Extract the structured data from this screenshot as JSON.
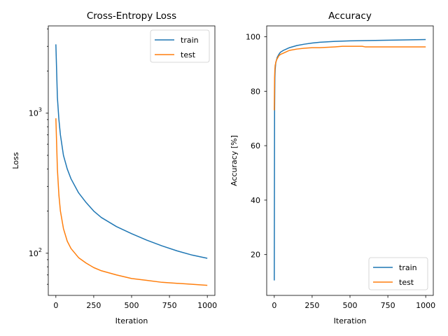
{
  "chart_data": [
    {
      "type": "line",
      "title": "Cross-Entropy Loss",
      "xlabel": "Iteration",
      "ylabel": "Loss",
      "yscale": "log",
      "xlim": [
        -50,
        1050
      ],
      "ylim": [
        50,
        4200
      ],
      "xticks": [
        0,
        250,
        500,
        750,
        1000
      ],
      "xtick_labels": [
        "0",
        "250",
        "500",
        "750",
        "1000"
      ],
      "yticks_major": [
        100,
        1000
      ],
      "ytick_labels": [
        {
          "base": "10",
          "exp": "2"
        },
        {
          "base": "10",
          "exp": "3"
        }
      ],
      "yticks_minor": [
        60,
        70,
        80,
        90,
        200,
        300,
        400,
        500,
        600,
        700,
        800,
        900,
        2000,
        3000,
        4000
      ],
      "legend": {
        "position": "top-right",
        "entries": [
          "train",
          "test"
        ]
      },
      "series": [
        {
          "name": "train",
          "color": "#1f77b4",
          "x": [
            0,
            10,
            20,
            30,
            50,
            75,
            100,
            150,
            200,
            250,
            300,
            400,
            500,
            600,
            700,
            800,
            900,
            1000
          ],
          "values": [
            3100,
            1300,
            900,
            700,
            500,
            400,
            340,
            270,
            230,
            200,
            180,
            155,
            138,
            124,
            113,
            104,
            97,
            92
          ]
        },
        {
          "name": "test",
          "color": "#ff7f0e",
          "x": [
            0,
            10,
            20,
            30,
            50,
            75,
            100,
            150,
            200,
            250,
            300,
            400,
            500,
            600,
            700,
            800,
            900,
            1000
          ],
          "values": [
            920,
            400,
            260,
            200,
            150,
            122,
            108,
            93,
            85,
            79,
            75,
            70,
            66,
            64,
            62,
            61,
            60,
            59
          ]
        }
      ]
    },
    {
      "type": "line",
      "title": "Accuracy",
      "xlabel": "Iteration",
      "ylabel": "Accuracy [%]",
      "yscale": "linear",
      "xlim": [
        -50,
        1050
      ],
      "ylim": [
        5,
        104
      ],
      "xticks": [
        0,
        250,
        500,
        750,
        1000
      ],
      "xtick_labels": [
        "0",
        "250",
        "500",
        "750",
        "1000"
      ],
      "yticks": [
        20,
        40,
        60,
        80,
        100
      ],
      "ytick_labels": [
        "20",
        "40",
        "60",
        "80",
        "100"
      ],
      "legend": {
        "position": "bottom-right",
        "entries": [
          "train",
          "test"
        ]
      },
      "series": [
        {
          "name": "train",
          "color": "#1f77b4",
          "x": [
            0,
            2,
            4,
            6,
            10,
            15,
            20,
            30,
            40,
            60,
            80,
            100,
            150,
            200,
            250,
            300,
            400,
            500,
            600,
            700,
            800,
            900,
            1000
          ],
          "values": [
            10.5,
            72,
            85,
            88,
            90.5,
            91.5,
            92.5,
            93.5,
            94.3,
            95,
            95.5,
            96,
            96.8,
            97.3,
            97.7,
            98,
            98.3,
            98.5,
            98.6,
            98.7,
            98.8,
            98.9,
            99
          ]
        },
        {
          "name": "test",
          "color": "#ff7f0e",
          "x": [
            0,
            2,
            4,
            6,
            10,
            15,
            20,
            30,
            40,
            60,
            80,
            100,
            150,
            200,
            250,
            300,
            400,
            450,
            500,
            550,
            580,
            600,
            700,
            800,
            900,
            1000
          ],
          "values": [
            73,
            85,
            88,
            89.5,
            90.5,
            91.5,
            92,
            93,
            93.5,
            94,
            94.5,
            95,
            95.5,
            95.8,
            96,
            96,
            96.3,
            96.5,
            96.5,
            96.5,
            96.5,
            96.3,
            96.3,
            96.3,
            96.3,
            96.3
          ]
        }
      ]
    }
  ]
}
